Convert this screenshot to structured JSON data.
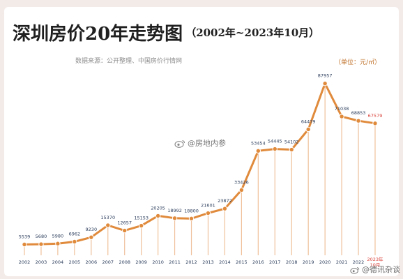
{
  "header": {
    "title": "深圳房价20年走势图",
    "subtitle": "（2002年~2023年10月）",
    "source": "数据来源：公开整理、中国房价行情网",
    "unit": "（单位：元/㎡）"
  },
  "watermarks": [
    "@房地内参",
    "@德讯杂谈"
  ],
  "colors": {
    "line": "#e08a3c",
    "stem": "#efc09a",
    "highlight": "#d9423a",
    "label": "#2c3e5c"
  },
  "chart_data": {
    "type": "line",
    "categories": [
      "2002",
      "2003",
      "2004",
      "2005",
      "2006",
      "2007",
      "2008",
      "2009",
      "2010",
      "2011",
      "2012",
      "2013",
      "2014",
      "2015",
      "2016",
      "2017",
      "2018",
      "2019",
      "2020",
      "2021",
      "2022",
      "2023年10月"
    ],
    "values": [
      5539,
      5680,
      5980,
      6962,
      9230,
      15370,
      12657,
      15153,
      20205,
      18992,
      18800,
      21601,
      23872,
      33426,
      53454,
      54445,
      54102,
      64479,
      87957,
      71038,
      68853,
      67579
    ],
    "title": "深圳房价20年走势图",
    "subtitle": "（2002年~2023年10月）",
    "ylabel": "（单位：元/㎡）",
    "ylim": [
      0,
      100000
    ],
    "grid": false,
    "highlight_index": 21
  }
}
